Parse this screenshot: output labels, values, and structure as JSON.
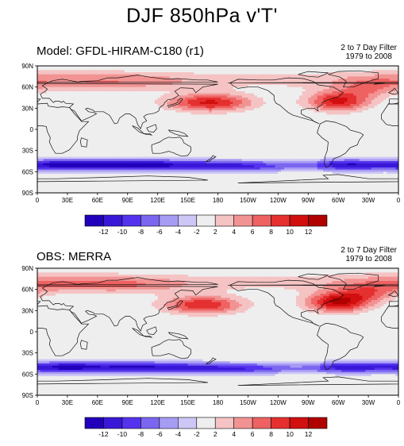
{
  "title": "DJF 850hPa v'T'",
  "panels": [
    {
      "label": "Model: GFDL-HIRAM-C180 (r1)",
      "note_line1": "2 to 7 Day Filter",
      "note_line2": "1979 to 2008",
      "pattern": [
        {
          "lon": 172,
          "lat": 38,
          "amp": 10.5,
          "sx": 30,
          "sy": 9
        },
        {
          "lon": 300,
          "lat": 40,
          "amp": 10.5,
          "sx": 22,
          "sy": 10
        },
        {
          "lon": 330,
          "lat": 57,
          "amp": 4,
          "sx": 20,
          "sy": 9
        },
        {
          "lon": 15,
          "lat": 68,
          "amp": 3,
          "sx": 50,
          "sy": 10
        },
        {
          "lon": 100,
          "lat": 68,
          "amp": 2.5,
          "sx": 40,
          "sy": 8
        },
        {
          "lon": 100,
          "lat": -50,
          "amp": -10,
          "sx": 45,
          "sy": 6
        },
        {
          "lon": 20,
          "lat": -50,
          "amp": -8,
          "sx": 30,
          "sy": 6
        },
        {
          "lon": 200,
          "lat": -52,
          "amp": -7,
          "sx": 40,
          "sy": 6
        },
        {
          "lon": 310,
          "lat": -50,
          "amp": -8.5,
          "sx": 25,
          "sy": 6
        }
      ]
    },
    {
      "label": "OBS: MERRA",
      "note_line1": "2 to 7 Day Filter",
      "note_line2": "1979 to 2008",
      "pattern": [
        {
          "lon": 165,
          "lat": 38,
          "amp": 10,
          "sx": 28,
          "sy": 9
        },
        {
          "lon": 300,
          "lat": 42,
          "amp": 12.5,
          "sx": 22,
          "sy": 10
        },
        {
          "lon": 330,
          "lat": 55,
          "amp": 5,
          "sx": 20,
          "sy": 9
        },
        {
          "lon": 15,
          "lat": 68,
          "amp": 3.5,
          "sx": 50,
          "sy": 10
        },
        {
          "lon": 100,
          "lat": 66,
          "amp": 3,
          "sx": 40,
          "sy": 8
        },
        {
          "lon": 100,
          "lat": -50,
          "amp": -9,
          "sx": 45,
          "sy": 6
        },
        {
          "lon": 20,
          "lat": -50,
          "amp": -7.5,
          "sx": 30,
          "sy": 6
        },
        {
          "lon": 200,
          "lat": -52,
          "amp": -6.5,
          "sx": 40,
          "sy": 6
        },
        {
          "lon": 310,
          "lat": -50,
          "amp": -8,
          "sx": 25,
          "sy": 6
        }
      ]
    }
  ],
  "x_ticks": [
    "0",
    "30E",
    "60E",
    "90E",
    "120E",
    "150E",
    "180",
    "150W",
    "120W",
    "90W",
    "60W",
    "30W",
    "0"
  ],
  "y_ticks": [
    "90N",
    "60N",
    "30N",
    "0",
    "30S",
    "60S",
    "90S"
  ],
  "colorbar": {
    "labels": [
      "-12",
      "-10",
      "-8",
      "-6",
      "-4",
      "-2",
      "2",
      "4",
      "6",
      "8",
      "10",
      "12"
    ],
    "colors": [
      "#2200bb",
      "#3a18d8",
      "#5533ee",
      "#7b66f0",
      "#a79cf4",
      "#cdc7f6",
      "#eeeeee",
      "#f5c3c3",
      "#f29393",
      "#ee6262",
      "#e53030",
      "#d20f0f",
      "#b00000"
    ]
  }
}
